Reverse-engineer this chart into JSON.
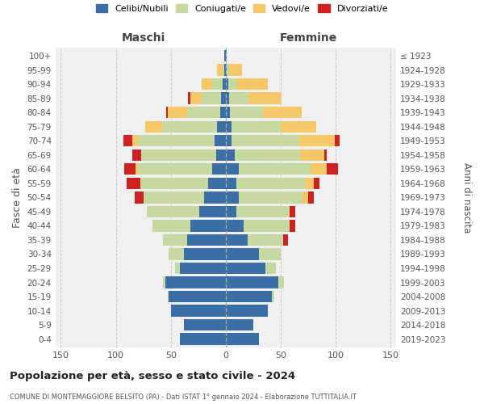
{
  "age_groups": [
    "0-4",
    "5-9",
    "10-14",
    "15-19",
    "20-24",
    "25-29",
    "30-34",
    "35-39",
    "40-44",
    "45-49",
    "50-54",
    "55-59",
    "60-64",
    "65-69",
    "70-74",
    "75-79",
    "80-84",
    "85-89",
    "90-94",
    "95-99",
    "100+"
  ],
  "birth_years": [
    "2019-2023",
    "2014-2018",
    "2009-2013",
    "2004-2008",
    "1999-2003",
    "1994-1998",
    "1989-1993",
    "1984-1988",
    "1979-1983",
    "1974-1978",
    "1969-1973",
    "1964-1968",
    "1959-1963",
    "1954-1958",
    "1949-1953",
    "1944-1948",
    "1939-1943",
    "1934-1938",
    "1929-1933",
    "1924-1928",
    "≤ 1923"
  ],
  "colors": {
    "celibe": "#3a6ea5",
    "coniugato": "#c5d9a0",
    "vedovo": "#f5c96a",
    "divorziato": "#cc2222"
  },
  "maschi_celibe": [
    42,
    38,
    50,
    52,
    55,
    42,
    38,
    35,
    32,
    24,
    20,
    16,
    12,
    9,
    10,
    8,
    5,
    4,
    3,
    1,
    1
  ],
  "maschi_coniugato": [
    0,
    0,
    0,
    1,
    2,
    4,
    14,
    22,
    35,
    48,
    55,
    62,
    68,
    68,
    70,
    50,
    30,
    18,
    9,
    2,
    0
  ],
  "maschi_vedovo": [
    0,
    0,
    0,
    0,
    0,
    0,
    0,
    0,
    0,
    0,
    0,
    0,
    2,
    0,
    5,
    15,
    18,
    10,
    10,
    5,
    0
  ],
  "maschi_divorziato": [
    0,
    0,
    0,
    0,
    0,
    0,
    0,
    0,
    0,
    0,
    8,
    12,
    10,
    8,
    8,
    0,
    1,
    2,
    0,
    0,
    0
  ],
  "femmine_nubile": [
    30,
    25,
    38,
    42,
    48,
    36,
    30,
    20,
    16,
    10,
    12,
    10,
    12,
    8,
    5,
    5,
    4,
    3,
    2,
    1,
    1
  ],
  "femmine_coniugata": [
    0,
    0,
    0,
    2,
    5,
    10,
    20,
    32,
    42,
    48,
    58,
    62,
    65,
    60,
    62,
    45,
    30,
    18,
    8,
    2,
    0
  ],
  "femmine_vedova": [
    0,
    0,
    0,
    0,
    0,
    0,
    0,
    0,
    0,
    0,
    5,
    8,
    15,
    22,
    32,
    32,
    35,
    30,
    28,
    12,
    0
  ],
  "femmine_divorziata": [
    0,
    0,
    0,
    0,
    0,
    0,
    0,
    5,
    5,
    5,
    5,
    5,
    10,
    2,
    5,
    0,
    0,
    0,
    0,
    0,
    0
  ],
  "title": "Popolazione per età, sesso e stato civile - 2024",
  "subtitle": "COMUNE DI MONTEMAGGIORE BELSITO (PA) - Dati ISTAT 1° gennaio 2024 - Elaborazione TUTTITALIA.IT",
  "ylabel": "Fasce di età",
  "ylabel_right": "Anni di nascita",
  "label_maschi": "Maschi",
  "label_femmine": "Femmine",
  "legend_labels": [
    "Celibi/Nubili",
    "Coniugati/e",
    "Vedovi/e",
    "Divorziati/e"
  ],
  "xlim": 155,
  "bar_height": 0.82,
  "bg_color": "#f0f0f0"
}
